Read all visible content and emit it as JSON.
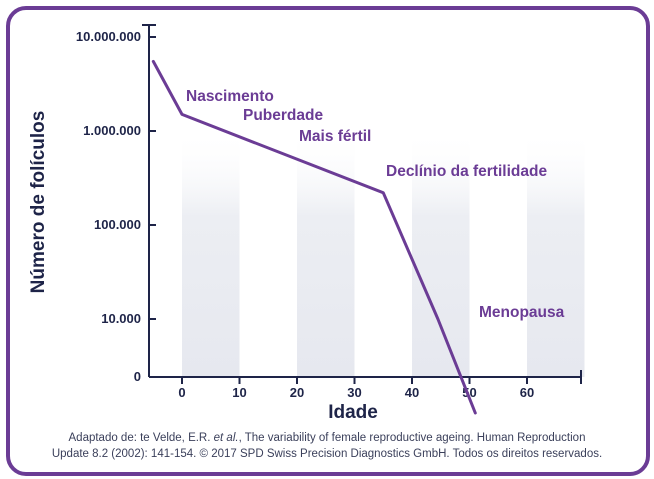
{
  "chart_data": {
    "type": "line",
    "title": "",
    "xlabel": "Idade",
    "ylabel": "Número de folículos",
    "y_scale": "log",
    "xlim": [
      -6,
      70
    ],
    "x_ticks": [
      0,
      10,
      20,
      30,
      40,
      50,
      60
    ],
    "y_ticks": [
      {
        "value": 10000000,
        "label": "10.000.000"
      },
      {
        "value": 1000000,
        "label": "1.000.000"
      },
      {
        "value": 100000,
        "label": "100.000"
      },
      {
        "value": 10000,
        "label": "10.000"
      },
      {
        "value": 0,
        "label": "0"
      }
    ],
    "series": [
      {
        "name": "Número de folículos",
        "x": [
          -5,
          0,
          35,
          44.5,
          51
        ],
        "y": [
          5500000,
          1500000,
          220000,
          10000,
          1000
        ]
      }
    ],
    "shaded_bands": [
      [
        0,
        10
      ],
      [
        20,
        30
      ],
      [
        40,
        50
      ],
      [
        60,
        70
      ]
    ],
    "annotations": [
      {
        "text": "Nascimento"
      },
      {
        "text": "Puberdade"
      },
      {
        "text": "Mais fértil"
      },
      {
        "text": "Declínio da fertilidade"
      },
      {
        "text": "Menopausa"
      }
    ],
    "colors": {
      "line": "#6b3c95",
      "axis": "#1e2448",
      "band": "#eceef3",
      "text": "#6b3c95"
    }
  },
  "caption": {
    "line1_prefix": "Adaptado de: te Velde, E.R. ",
    "line1_italic": "et al.",
    "line1_suffix": ", The variability of female reproductive ageing. Human Reproduction",
    "line2": "Update 8.2 (2002): 141-154. © 2017 SPD Swiss Precision Diagnostics GmbH. Todos os direitos reservados."
  }
}
